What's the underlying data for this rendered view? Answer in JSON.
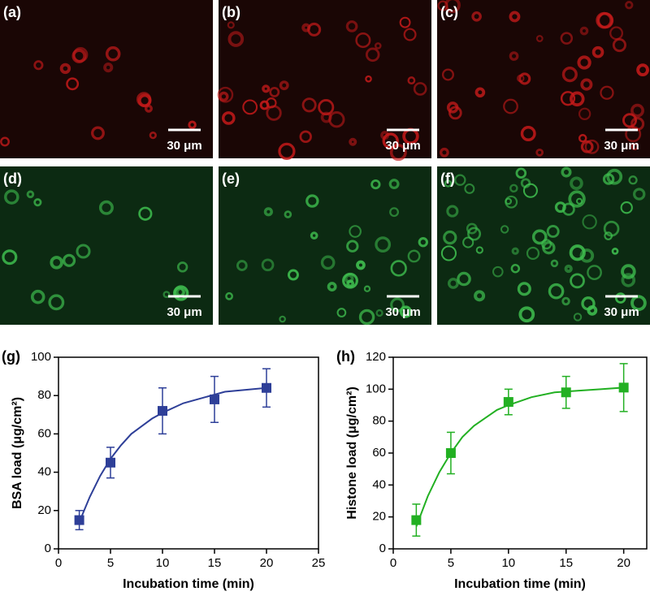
{
  "panels": [
    {
      "label": "(a)",
      "scale_bar": "30 μm"
    },
    {
      "label": "(b)",
      "scale_bar": "30 μm"
    },
    {
      "label": "(c)",
      "scale_bar": "30 μm"
    },
    {
      "label": "(d)",
      "scale_bar": "30 μm"
    },
    {
      "label": "(e)",
      "scale_bar": "30 μm"
    },
    {
      "label": "(f)",
      "scale_bar": "30 μm"
    }
  ],
  "chart_data": [
    {
      "type": "scatter",
      "panel_label": "(g)",
      "x_label": "Incubation time (min)",
      "y_label": "BSA load (μg/cm²)",
      "x": [
        2,
        5,
        10,
        15,
        20
      ],
      "values": [
        15,
        45,
        72,
        78,
        84
      ],
      "errors": [
        5,
        8,
        12,
        12,
        10
      ],
      "color": "#2e3f98",
      "fit": {
        "x": [
          2,
          3,
          4,
          5,
          6,
          7,
          8,
          9,
          10,
          12,
          14,
          16,
          18,
          20
        ],
        "values": [
          14,
          27,
          38,
          47,
          54,
          60,
          64,
          68,
          71,
          76,
          79,
          82,
          83,
          84
        ]
      },
      "xlim": [
        0,
        25
      ],
      "xticks": [
        0,
        5,
        10,
        15,
        20,
        25
      ],
      "ylim": [
        0,
        100
      ],
      "yticks": [
        0,
        20,
        40,
        60,
        80,
        100
      ]
    },
    {
      "type": "scatter",
      "panel_label": "(h)",
      "x_label": "Incubation time (min)",
      "y_label": "Histone load (μg/cm²)",
      "x": [
        2,
        5,
        10,
        15,
        20
      ],
      "values": [
        18,
        60,
        92,
        98,
        101
      ],
      "errors": [
        10,
        13,
        8,
        10,
        15
      ],
      "color": "#22b022",
      "fit": {
        "x": [
          2,
          3,
          4,
          5,
          6,
          7,
          8,
          9,
          10,
          12,
          14,
          16,
          18,
          20
        ],
        "values": [
          14,
          33,
          48,
          60,
          70,
          77,
          82,
          87,
          90,
          95,
          98,
          99,
          100,
          101
        ]
      },
      "xlim": [
        0,
        22
      ],
      "xticks": [
        0,
        5,
        10,
        15,
        20
      ],
      "ylim": [
        0,
        120
      ],
      "yticks": [
        0,
        20,
        40,
        60,
        80,
        100,
        120
      ]
    }
  ]
}
